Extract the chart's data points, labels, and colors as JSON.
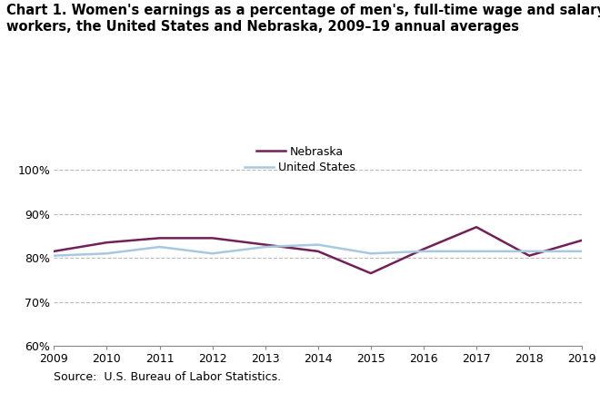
{
  "years": [
    2009,
    2010,
    2011,
    2012,
    2013,
    2014,
    2015,
    2016,
    2017,
    2018,
    2019
  ],
  "nebraska": [
    81.5,
    83.5,
    84.5,
    84.5,
    83.0,
    81.5,
    76.5,
    82.0,
    87.0,
    80.5,
    84.0
  ],
  "us": [
    80.5,
    81.0,
    82.5,
    81.0,
    82.5,
    83.0,
    81.0,
    81.5,
    81.5,
    81.5,
    81.5
  ],
  "nebraska_color": "#722057",
  "us_color": "#a8c8e0",
  "title": "Chart 1. Women's earnings as a percentage of men's, full-time wage and salary\nworkers, the United States and Nebraska, 2009–19 annual averages",
  "legend_nebraska": "Nebraska",
  "legend_us": "United States",
  "source": "Source:  U.S. Bureau of Labor Statistics.",
  "ylim": [
    60,
    102
  ],
  "yticks": [
    60,
    70,
    80,
    90,
    100
  ],
  "ytick_labels": [
    "60%",
    "70%",
    "80%",
    "90%",
    "100%"
  ],
  "line_width": 1.8,
  "grid_color": "#bbbbbb",
  "background_color": "#ffffff",
  "title_fontsize": 10.5,
  "tick_fontsize": 9,
  "source_fontsize": 9
}
